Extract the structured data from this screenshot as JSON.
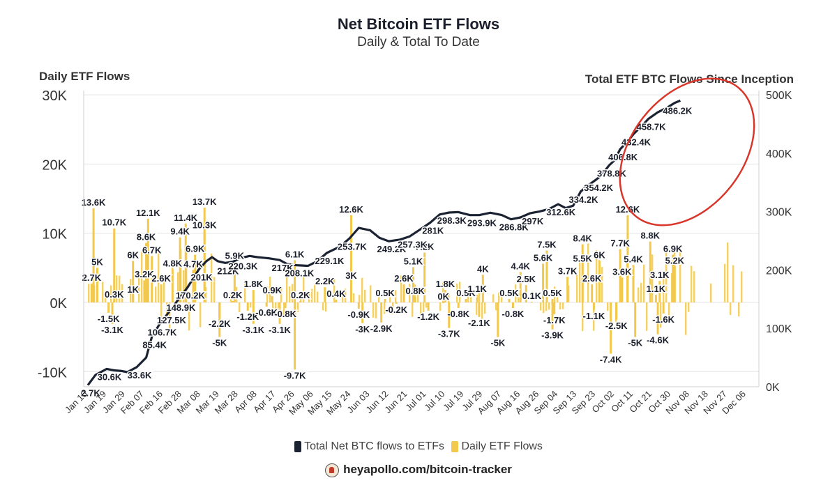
{
  "chart_data": {
    "type": "bar+line",
    "title": "Net Bitcoin ETF Flows",
    "subtitle": "Daily & Total To Date",
    "ylabel_left": "Daily ETF Flows",
    "ylabel_right": "Total ETF BTC Flows Since Inception",
    "y_left_ticks": [
      "30K",
      "20K",
      "10K",
      "0K",
      "-10K"
    ],
    "y_right_ticks": [
      "500K",
      "400K",
      "300K",
      "200K",
      "100K",
      "0K"
    ],
    "y_left_range": [
      -12000,
      30000
    ],
    "y_right_range": [
      0,
      500000
    ],
    "x_ticks": [
      "Jan 10",
      "Jan 19",
      "Jan 29",
      "Feb 07",
      "Feb 16",
      "Feb 28",
      "Mar 08",
      "Mar 19",
      "Mar 28",
      "Apr 08",
      "Apr 17",
      "Apr 26",
      "May 06",
      "May 15",
      "May 24",
      "Jun 03",
      "Jun 12",
      "Jun 21",
      "Jul 01",
      "Jul 10",
      "Jul 19",
      "Jul 29",
      "Aug 07",
      "Aug 16",
      "Aug 26",
      "Sep 04",
      "Sep 13",
      "Sep 23",
      "Oct 02",
      "Oct 11",
      "Oct 21",
      "Oct 30",
      "Nov 08",
      "Nov 18",
      "Nov 27",
      "Dec 06"
    ],
    "daily_bar_labels": [
      {
        "x": 0.3,
        "v": 13.6,
        "t": "13.6K"
      },
      {
        "x": 0.2,
        "v": 2.7,
        "t": "2.7K"
      },
      {
        "x": 0.5,
        "v": 5.0,
        "t": "5K"
      },
      {
        "x": 1.4,
        "v": 10.7,
        "t": "10.7K"
      },
      {
        "x": 1.1,
        "v": -1.5,
        "t": "-1.5K"
      },
      {
        "x": 1.3,
        "v": -3.1,
        "t": "-3.1K"
      },
      {
        "x": 1.4,
        "v": 0.3,
        "t": "0.3K"
      },
      {
        "x": 2.4,
        "v": 6.0,
        "t": "6K"
      },
      {
        "x": 2.4,
        "v": 1.0,
        "t": "1K"
      },
      {
        "x": 3.2,
        "v": 12.1,
        "t": "12.1K"
      },
      {
        "x": 3.1,
        "v": 8.6,
        "t": "8.6K"
      },
      {
        "x": 3.4,
        "v": 6.7,
        "t": "6.7K"
      },
      {
        "x": 3.0,
        "v": 3.2,
        "t": "3.2K"
      },
      {
        "x": 3.9,
        "v": 2.6,
        "t": "2.6K"
      },
      {
        "x": 4.5,
        "v": 4.8,
        "t": "4.8K"
      },
      {
        "x": 5.2,
        "v": 11.4,
        "t": "11.4K"
      },
      {
        "x": 4.9,
        "v": 9.4,
        "t": "9.4K"
      },
      {
        "x": 5.7,
        "v": 6.9,
        "t": "6.9K"
      },
      {
        "x": 5.6,
        "v": 4.7,
        "t": "4.7K"
      },
      {
        "x": 6.2,
        "v": 13.7,
        "t": "13.7K"
      },
      {
        "x": 6.2,
        "v": 10.3,
        "t": "10.3K"
      },
      {
        "x": 7.8,
        "v": 5.9,
        "t": "5.9K"
      },
      {
        "x": 7.7,
        "v": 0.2,
        "t": "0.2K"
      },
      {
        "x": 7.0,
        "v": -2.2,
        "t": "-2.2K"
      },
      {
        "x": 7.0,
        "v": -5.0,
        "t": "-5K"
      },
      {
        "x": 8.8,
        "v": 1.8,
        "t": "1.8K"
      },
      {
        "x": 8.5,
        "v": -1.2,
        "t": "-1.2K"
      },
      {
        "x": 8.8,
        "v": -3.1,
        "t": "-3.1K"
      },
      {
        "x": 9.8,
        "v": 0.9,
        "t": "0.9K"
      },
      {
        "x": 9.5,
        "v": -0.6,
        "t": "-0.6K"
      },
      {
        "x": 10.5,
        "v": -0.8,
        "t": "-0.8K"
      },
      {
        "x": 10.2,
        "v": -3.1,
        "t": "-3.1K"
      },
      {
        "x": 11.0,
        "v": 6.1,
        "t": "6.1K"
      },
      {
        "x": 11.3,
        "v": 0.2,
        "t": "0.2K"
      },
      {
        "x": 11.0,
        "v": -9.7,
        "t": "-9.7K"
      },
      {
        "x": 12.6,
        "v": 2.2,
        "t": "2.2K"
      },
      {
        "x": 13.2,
        "v": 0.4,
        "t": "0.4K"
      },
      {
        "x": 14.0,
        "v": 12.6,
        "t": "12.6K"
      },
      {
        "x": 14.0,
        "v": 3.0,
        "t": "3K"
      },
      {
        "x": 14.4,
        "v": -0.9,
        "t": "-0.9K"
      },
      {
        "x": 14.6,
        "v": -3.0,
        "t": "-3K"
      },
      {
        "x": 15.8,
        "v": 0.5,
        "t": "0.5K"
      },
      {
        "x": 15.6,
        "v": -2.9,
        "t": "-2.9K"
      },
      {
        "x": 16.4,
        "v": -0.2,
        "t": "-0.2K"
      },
      {
        "x": 17.3,
        "v": 5.1,
        "t": "5.1K"
      },
      {
        "x": 16.8,
        "v": 2.6,
        "t": "2.6K"
      },
      {
        "x": 17.9,
        "v": 7.2,
        "t": "7.2K"
      },
      {
        "x": 17.4,
        "v": 0.8,
        "t": "0.8K"
      },
      {
        "x": 18.1,
        "v": -1.2,
        "t": "-1.2K"
      },
      {
        "x": 19.0,
        "v": 1.8,
        "t": "1.8K"
      },
      {
        "x": 18.9,
        "v": 0.0,
        "t": "0K"
      },
      {
        "x": 19.2,
        "v": -3.7,
        "t": "-3.7K"
      },
      {
        "x": 20.1,
        "v": 0.5,
        "t": "0.5K"
      },
      {
        "x": 19.7,
        "v": -0.8,
        "t": "-0.8K"
      },
      {
        "x": 21.0,
        "v": 4.0,
        "t": "4K"
      },
      {
        "x": 20.7,
        "v": 1.1,
        "t": "1.1K"
      },
      {
        "x": 20.8,
        "v": -2.1,
        "t": "-2.1K"
      },
      {
        "x": 21.8,
        "v": -5.0,
        "t": "-5K"
      },
      {
        "x": 22.4,
        "v": 0.5,
        "t": "0.5K"
      },
      {
        "x": 22.6,
        "v": -0.8,
        "t": "-0.8K"
      },
      {
        "x": 23.0,
        "v": 4.4,
        "t": "4.4K"
      },
      {
        "x": 23.3,
        "v": 2.5,
        "t": "2.5K"
      },
      {
        "x": 23.6,
        "v": 0.1,
        "t": "0.1K"
      },
      {
        "x": 24.4,
        "v": 7.5,
        "t": "7.5K"
      },
      {
        "x": 24.2,
        "v": 5.6,
        "t": "5.6K"
      },
      {
        "x": 24.7,
        "v": 0.5,
        "t": "0.5K"
      },
      {
        "x": 24.8,
        "v": -1.7,
        "t": "-1.7K"
      },
      {
        "x": 24.7,
        "v": -3.9,
        "t": "-3.9K"
      },
      {
        "x": 25.5,
        "v": 3.7,
        "t": "3.7K"
      },
      {
        "x": 26.3,
        "v": 8.4,
        "t": "8.4K"
      },
      {
        "x": 26.3,
        "v": 5.5,
        "t": "5.5K"
      },
      {
        "x": 26.8,
        "v": 2.6,
        "t": "2.6K"
      },
      {
        "x": 27.2,
        "v": 6.0,
        "t": "6K"
      },
      {
        "x": 26.9,
        "v": -1.1,
        "t": "-1.1K"
      },
      {
        "x": 28.3,
        "v": 7.7,
        "t": "7.7K"
      },
      {
        "x": 28.7,
        "v": 12.6,
        "t": "12.6K"
      },
      {
        "x": 28.4,
        "v": 3.6,
        "t": "3.6K"
      },
      {
        "x": 29.0,
        "v": 5.4,
        "t": "5.4K"
      },
      {
        "x": 28.1,
        "v": -2.5,
        "t": "-2.5K"
      },
      {
        "x": 27.8,
        "v": -7.4,
        "t": "-7.4K"
      },
      {
        "x": 29.1,
        "v": -5.0,
        "t": "-5K"
      },
      {
        "x": 29.9,
        "v": 8.8,
        "t": "8.8K"
      },
      {
        "x": 30.4,
        "v": 3.1,
        "t": "3.1K"
      },
      {
        "x": 30.2,
        "v": 1.1,
        "t": "1.1K"
      },
      {
        "x": 30.6,
        "v": -1.6,
        "t": "-1.6K"
      },
      {
        "x": 30.3,
        "v": -4.6,
        "t": "-4.6K"
      },
      {
        "x": 31.1,
        "v": 6.9,
        "t": "6.9K"
      },
      {
        "x": 31.2,
        "v": 5.2,
        "t": "5.2K"
      }
    ],
    "total_line_points": [
      [
        0.0,
        2.7
      ],
      [
        0.4,
        20
      ],
      [
        1.0,
        30.6
      ],
      [
        1.4,
        28
      ],
      [
        1.8,
        27
      ],
      [
        2.1,
        25
      ],
      [
        2.6,
        33.6
      ],
      [
        3.1,
        50
      ],
      [
        3.4,
        85.4
      ],
      [
        3.8,
        106.7
      ],
      [
        4.3,
        127.5
      ],
      [
        4.8,
        148.9
      ],
      [
        5.3,
        170.2
      ],
      [
        5.9,
        201
      ],
      [
        6.3,
        215
      ],
      [
        6.6,
        222
      ],
      [
        6.9,
        215
      ],
      [
        7.3,
        212
      ],
      [
        7.7,
        214
      ],
      [
        8.1,
        220.3
      ],
      [
        8.6,
        224
      ],
      [
        9.0,
        222
      ],
      [
        9.6,
        220
      ],
      [
        10.2,
        217
      ],
      [
        10.6,
        210
      ],
      [
        11.1,
        208.1
      ],
      [
        11.7,
        207
      ],
      [
        12.2,
        215
      ],
      [
        12.7,
        229.1
      ],
      [
        13.4,
        240
      ],
      [
        13.9,
        253.7
      ],
      [
        14.4,
        272
      ],
      [
        15.0,
        268
      ],
      [
        15.5,
        255
      ],
      [
        16.0,
        249.2
      ],
      [
        16.6,
        252
      ],
      [
        17.1,
        257.3
      ],
      [
        17.7,
        270
      ],
      [
        18.2,
        281
      ],
      [
        18.7,
        295
      ],
      [
        19.2,
        298.3
      ],
      [
        19.7,
        299
      ],
      [
        20.3,
        294
      ],
      [
        20.8,
        293.9
      ],
      [
        21.4,
        298
      ],
      [
        22.0,
        294
      ],
      [
        22.5,
        286.8
      ],
      [
        23.0,
        290
      ],
      [
        23.5,
        297
      ],
      [
        24.0,
        300
      ],
      [
        24.5,
        304
      ],
      [
        25.0,
        312.6
      ],
      [
        25.4,
        306
      ],
      [
        25.8,
        310
      ],
      [
        26.2,
        334.2
      ],
      [
        26.6,
        345
      ],
      [
        27.0,
        354.2
      ],
      [
        27.3,
        362
      ],
      [
        27.7,
        378.8
      ],
      [
        28.0,
        388
      ],
      [
        28.3,
        406.8
      ],
      [
        28.7,
        420
      ],
      [
        29.0,
        432.4
      ],
      [
        29.4,
        445
      ],
      [
        29.8,
        458.7
      ],
      [
        30.3,
        470
      ],
      [
        30.8,
        478
      ],
      [
        31.2,
        486.2
      ],
      [
        31.5,
        490
      ]
    ],
    "total_labels": [
      {
        "x": 0.0,
        "v": 2.7,
        "t": "2.7K"
      },
      {
        "x": 1.0,
        "v": 30.6,
        "t": "30.6K"
      },
      {
        "x": 2.6,
        "v": 33.6,
        "t": "33.6K"
      },
      {
        "x": 3.4,
        "v": 85.4,
        "t": "85.4K"
      },
      {
        "x": 3.8,
        "v": 106.7,
        "t": "106.7K"
      },
      {
        "x": 4.3,
        "v": 127.5,
        "t": "127.5K"
      },
      {
        "x": 4.8,
        "v": 148.9,
        "t": "148.9K"
      },
      {
        "x": 5.3,
        "v": 170.2,
        "t": "170.2K"
      },
      {
        "x": 5.9,
        "v": 201,
        "t": "201K"
      },
      {
        "x": 7.3,
        "v": 212,
        "t": "212K"
      },
      {
        "x": 8.1,
        "v": 220.3,
        "t": "220.3K"
      },
      {
        "x": 10.2,
        "v": 217,
        "t": "217K"
      },
      {
        "x": 11.1,
        "v": 208.1,
        "t": "208.1K"
      },
      {
        "x": 12.7,
        "v": 229.1,
        "t": "229.1K"
      },
      {
        "x": 13.9,
        "v": 253.7,
        "t": "253.7K"
      },
      {
        "x": 16.0,
        "v": 249.2,
        "t": "249.2K"
      },
      {
        "x": 17.1,
        "v": 257.3,
        "t": "257.3K"
      },
      {
        "x": 18.2,
        "v": 281,
        "t": "281K"
      },
      {
        "x": 19.2,
        "v": 298.3,
        "t": "298.3K"
      },
      {
        "x": 20.8,
        "v": 293.9,
        "t": "293.9K"
      },
      {
        "x": 22.5,
        "v": 286.8,
        "t": "286.8K"
      },
      {
        "x": 23.5,
        "v": 297,
        "t": "297K"
      },
      {
        "x": 25.0,
        "v": 312.6,
        "t": "312.6K"
      },
      {
        "x": 26.2,
        "v": 334.2,
        "t": "334.2K"
      },
      {
        "x": 27.0,
        "v": 354.2,
        "t": "354.2K"
      },
      {
        "x": 27.7,
        "v": 378.8,
        "t": "378.8K"
      },
      {
        "x": 28.3,
        "v": 406.8,
        "t": "406.8K"
      },
      {
        "x": 29.0,
        "v": 432.4,
        "t": "432.4K"
      },
      {
        "x": 29.8,
        "v": 458.7,
        "t": "458.7K"
      },
      {
        "x": 31.2,
        "v": 486.2,
        "t": "486.2K"
      }
    ],
    "legend": [
      "Total Net BTC flows to ETFs",
      "Daily ETF Flows"
    ],
    "colors": {
      "bars": "#f2c94c",
      "line": "#1b2333",
      "annotation": "#d9362b",
      "grid": "#e3e3e3"
    },
    "legend_placement": "bottom-center",
    "grid": true
  },
  "footer": "heyapollo.com/bitcoin-tracker"
}
